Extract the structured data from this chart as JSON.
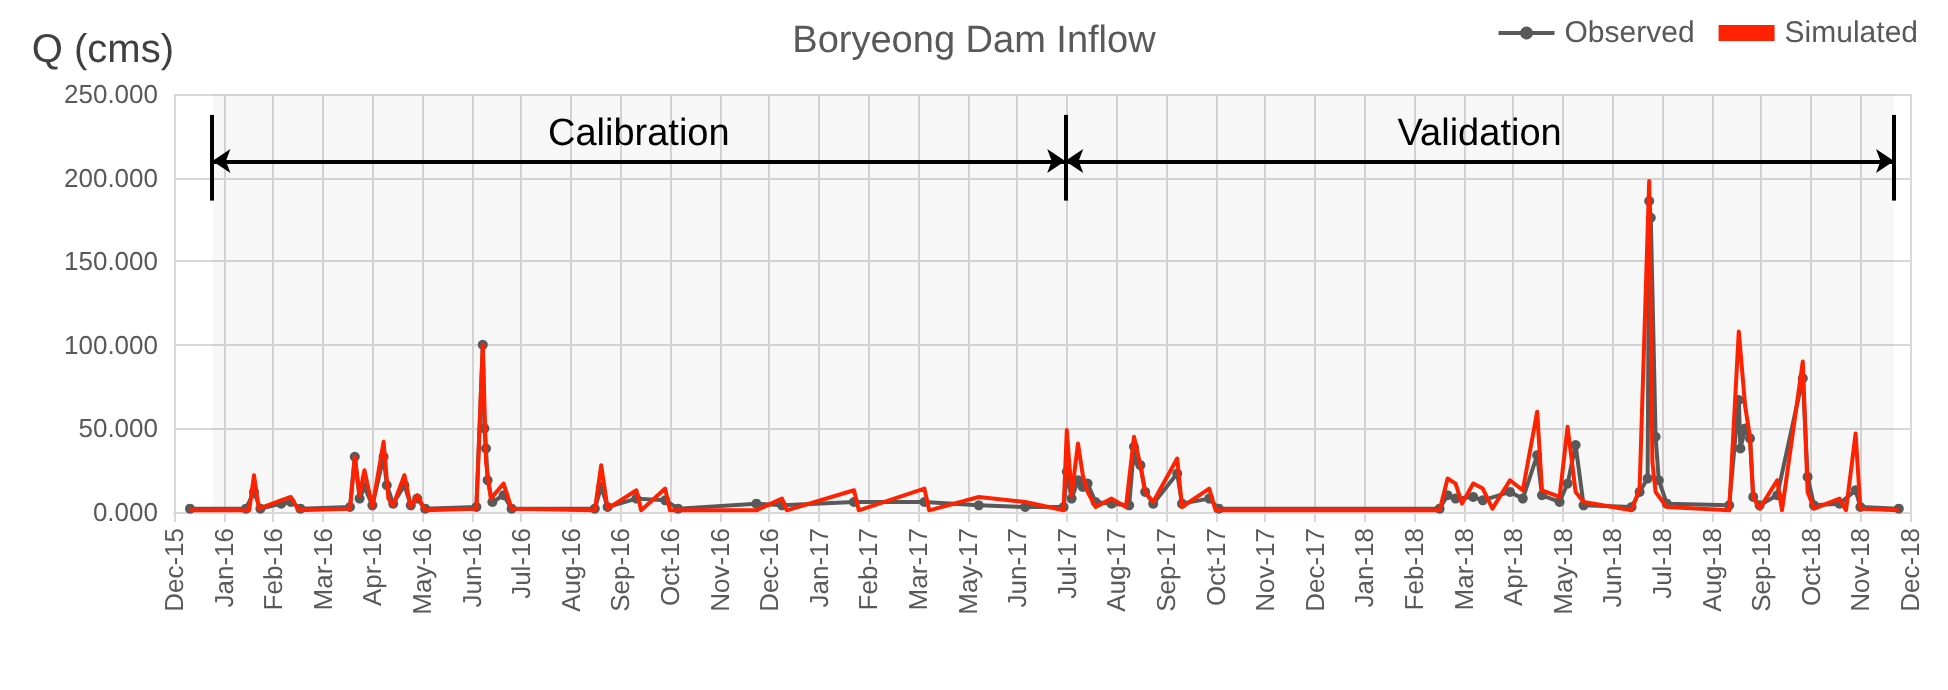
{
  "chart_data": {
    "type": "line",
    "title": "Boryeong Dam Inflow",
    "ylabel": "Q (cms)",
    "xlim": [
      "2015-12-22",
      "2018-12-11"
    ],
    "xticks": [
      {
        "value": "2015-12-22",
        "label": "Dec-15"
      },
      {
        "value": "2016-01-22",
        "label": "Jan-16"
      },
      {
        "value": "2016-02-22",
        "label": "Feb-16"
      },
      {
        "value": "2016-03-24",
        "label": "Mar-16"
      },
      {
        "value": "2016-04-24",
        "label": "Apr-16"
      },
      {
        "value": "2016-05-25",
        "label": "May-16"
      },
      {
        "value": "2016-06-25",
        "label": "Jun-16"
      },
      {
        "value": "2016-07-26",
        "label": "Jul-16"
      },
      {
        "value": "2016-08-26",
        "label": "Aug-16"
      },
      {
        "value": "2016-09-26",
        "label": "Sep-16"
      },
      {
        "value": "2016-10-27",
        "label": "Oct-16"
      },
      {
        "value": "2016-11-27",
        "label": "Nov-16"
      },
      {
        "value": "2016-12-28",
        "label": "Dec-16"
      },
      {
        "value": "2017-01-28",
        "label": "Jan-17"
      },
      {
        "value": "2017-02-28",
        "label": "Feb-17"
      },
      {
        "value": "2017-03-31",
        "label": "Mar-17"
      },
      {
        "value": "2017-05-01",
        "label": "May-17"
      },
      {
        "value": "2017-06-01",
        "label": "Jun-17"
      },
      {
        "value": "2017-07-02",
        "label": "Jul-17"
      },
      {
        "value": "2017-08-02",
        "label": "Aug-17"
      },
      {
        "value": "2017-09-02",
        "label": "Sep-17"
      },
      {
        "value": "2017-10-03",
        "label": "Oct-17"
      },
      {
        "value": "2017-11-03",
        "label": "Nov-17"
      },
      {
        "value": "2017-12-04",
        "label": "Dec-17"
      },
      {
        "value": "2018-01-04",
        "label": "Jan-18"
      },
      {
        "value": "2018-02-04",
        "label": "Feb-18"
      },
      {
        "value": "2018-03-07",
        "label": "Mar-18"
      },
      {
        "value": "2018-04-07",
        "label": "Apr-18"
      },
      {
        "value": "2018-05-08",
        "label": "May-18"
      },
      {
        "value": "2018-06-08",
        "label": "Jun-18"
      },
      {
        "value": "2018-07-09",
        "label": "Jul-18"
      },
      {
        "value": "2018-08-09",
        "label": "Aug-18"
      },
      {
        "value": "2018-09-09",
        "label": "Sep-18"
      },
      {
        "value": "2018-10-10",
        "label": "Oct-18"
      },
      {
        "value": "2018-11-10",
        "label": "Nov-18"
      },
      {
        "value": "2018-12-11",
        "label": "Dec-18"
      }
    ],
    "ylim": [
      0,
      250
    ],
    "yticks": [
      {
        "value": 0,
        "label": "0.000"
      },
      {
        "value": 50,
        "label": "50.000"
      },
      {
        "value": 100,
        "label": "100.000"
      },
      {
        "value": 150,
        "label": "150.000"
      },
      {
        "value": 200,
        "label": "200.000"
      },
      {
        "value": 250,
        "label": "250.000"
      }
    ],
    "grid": true,
    "legend": "top right",
    "ref_lines": [
      {
        "axis": "x",
        "value": "2016-01-15",
        "color": "#000000"
      },
      {
        "axis": "x",
        "value": "2017-07-01",
        "color": "#000000"
      },
      {
        "axis": "x",
        "value": "2018-12-01",
        "color": "#000000"
      }
    ],
    "bands": [
      {
        "axis": "x",
        "from": "2016-01-15",
        "to": "2017-07-01",
        "label": "Calibration",
        "color": "#000000"
      },
      {
        "axis": "x",
        "from": "2017-07-01",
        "to": "2018-12-01",
        "label": "Validation",
        "color": "#000000"
      }
    ],
    "series": [
      {
        "name": "Observed",
        "color": "#595959",
        "marker": "circle",
        "x": [
          "2016-01-01",
          "2016-02-05",
          "2016-02-10",
          "2016-02-14",
          "2016-02-27",
          "2016-03-04",
          "2016-03-10",
          "2016-04-10",
          "2016-04-13",
          "2016-04-16",
          "2016-04-19",
          "2016-04-24",
          "2016-05-01",
          "2016-05-03",
          "2016-05-07",
          "2016-05-14",
          "2016-05-18",
          "2016-05-22",
          "2016-05-27",
          "2016-06-28",
          "2016-07-02",
          "2016-07-03",
          "2016-07-04",
          "2016-07-05",
          "2016-07-08",
          "2016-07-15",
          "2016-07-20",
          "2016-09-10",
          "2016-09-14",
          "2016-09-18",
          "2016-10-06",
          "2016-10-24",
          "2016-11-01",
          "2016-12-20",
          "2017-01-05",
          "2017-02-19",
          "2017-04-04",
          "2017-05-08",
          "2017-06-06",
          "2017-06-30",
          "2017-07-02",
          "2017-07-05",
          "2017-07-09",
          "2017-07-12",
          "2017-07-15",
          "2017-07-20",
          "2017-07-30",
          "2017-08-10",
          "2017-08-13",
          "2017-08-14",
          "2017-08-17",
          "2017-08-20",
          "2017-08-25",
          "2017-09-09",
          "2017-09-12",
          "2017-09-29",
          "2017-10-05",
          "2018-02-20",
          "2018-02-25",
          "2018-03-02",
          "2018-03-13",
          "2018-03-19",
          "2018-04-05",
          "2018-04-13",
          "2018-04-22",
          "2018-04-25",
          "2018-05-06",
          "2018-05-11",
          "2018-05-16",
          "2018-05-21",
          "2018-06-20",
          "2018-06-25",
          "2018-06-30",
          "2018-07-01",
          "2018-07-02",
          "2018-07-05",
          "2018-07-07",
          "2018-07-12",
          "2018-08-20",
          "2018-08-26",
          "2018-08-27",
          "2018-08-30",
          "2018-09-02",
          "2018-09-04",
          "2018-09-08",
          "2018-09-19",
          "2018-10-05",
          "2018-10-08",
          "2018-10-12",
          "2018-10-28",
          "2018-11-07",
          "2018-11-10",
          "2018-12-04"
        ],
        "values": [
          2,
          2,
          12,
          2,
          5,
          6,
          2,
          3,
          33,
          8,
          15,
          4,
          33,
          16,
          5,
          16,
          4,
          8,
          2,
          3,
          100,
          50,
          38,
          19,
          6,
          10,
          2,
          2,
          15,
          3,
          8,
          7,
          2,
          5,
          4,
          6,
          6,
          4,
          3,
          3,
          24,
          8,
          19,
          15,
          17,
          6,
          5,
          4,
          39,
          31,
          28,
          12,
          5,
          23,
          5,
          8,
          2,
          2,
          10,
          8,
          9,
          7,
          12,
          8,
          34,
          10,
          6,
          17,
          40,
          4,
          3,
          12,
          20,
          186,
          176,
          45,
          19,
          5,
          4,
          67,
          38,
          50,
          44,
          9,
          4,
          10,
          80,
          21,
          4,
          5,
          13,
          3,
          2
        ]
      },
      {
        "name": "Simulated",
        "color": "#ff2200",
        "marker": "none",
        "x": [
          "2016-01-01",
          "2016-02-07",
          "2016-02-10",
          "2016-02-13",
          "2016-02-27",
          "2016-03-04",
          "2016-03-09",
          "2016-04-10",
          "2016-04-13",
          "2016-04-16",
          "2016-04-19",
          "2016-04-24",
          "2016-05-01",
          "2016-05-04",
          "2016-05-07",
          "2016-05-14",
          "2016-05-18",
          "2016-05-22",
          "2016-05-27",
          "2016-06-28",
          "2016-07-02",
          "2016-07-04",
          "2016-07-07",
          "2016-07-15",
          "2016-07-20",
          "2016-09-10",
          "2016-09-14",
          "2016-09-18",
          "2016-10-06",
          "2016-10-09",
          "2016-10-24",
          "2016-10-27",
          "2016-12-20",
          "2017-01-05",
          "2017-01-08",
          "2017-02-19",
          "2017-02-22",
          "2017-04-04",
          "2017-04-07",
          "2017-05-08",
          "2017-06-06",
          "2017-06-30",
          "2017-07-02",
          "2017-07-05",
          "2017-07-09",
          "2017-07-12",
          "2017-07-15",
          "2017-07-20",
          "2017-07-30",
          "2017-08-08",
          "2017-08-13",
          "2017-08-17",
          "2017-08-20",
          "2017-08-25",
          "2017-09-09",
          "2017-09-12",
          "2017-09-29",
          "2017-10-03",
          "2018-02-20",
          "2018-02-25",
          "2018-03-02",
          "2018-03-06",
          "2018-03-13",
          "2018-03-19",
          "2018-03-25",
          "2018-04-05",
          "2018-04-13",
          "2018-04-22",
          "2018-04-25",
          "2018-05-06",
          "2018-05-11",
          "2018-05-16",
          "2018-05-21",
          "2018-06-20",
          "2018-06-25",
          "2018-07-01",
          "2018-07-03",
          "2018-07-05",
          "2018-07-12",
          "2018-08-20",
          "2018-08-26",
          "2018-08-30",
          "2018-09-02",
          "2018-09-04",
          "2018-09-08",
          "2018-09-19",
          "2018-09-22",
          "2018-10-05",
          "2018-10-08",
          "2018-10-12",
          "2018-10-28",
          "2018-11-01",
          "2018-11-07",
          "2018-11-10",
          "2018-12-04"
        ],
        "values": [
          1,
          1,
          22,
          2,
          7,
          9,
          1,
          2,
          33,
          10,
          25,
          3,
          42,
          8,
          4,
          22,
          3,
          10,
          1,
          2,
          100,
          30,
          8,
          17,
          2,
          1,
          28,
          2,
          13,
          1,
          14,
          1,
          1,
          8,
          1,
          13,
          1,
          14,
          1,
          9,
          6,
          1,
          49,
          10,
          41,
          22,
          12,
          3,
          8,
          3,
          45,
          28,
          12,
          6,
          32,
          3,
          14,
          1,
          1,
          20,
          17,
          5,
          17,
          14,
          2,
          19,
          13,
          60,
          13,
          9,
          51,
          12,
          6,
          1,
          14,
          198,
          30,
          12,
          3,
          1,
          108,
          63,
          45,
          9,
          2,
          19,
          1,
          90,
          12,
          2,
          8,
          1,
          47,
          2,
          1
        ]
      }
    ]
  }
}
